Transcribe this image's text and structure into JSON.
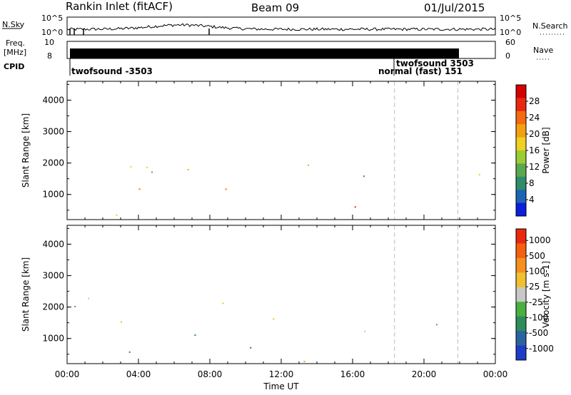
{
  "header": {
    "station": "Rankin Inlet (fitACF)",
    "beam": "Beam 09",
    "date": "01/Jul/2015"
  },
  "strip_labels": {
    "nsky": "N.Sky",
    "nsky_hi": "10^5",
    "nsky_lo": "10^0",
    "nsearch": "N.Search",
    "nsearch_hi": "10^5",
    "nsearch_lo": "10^0",
    "freq_line1": "Freq.",
    "freq_line2": "[MHz]",
    "freq_tick_hi": "10",
    "freq_tick_lo": "8",
    "nave": "Nave",
    "nave_tick_hi": "60",
    "nave_tick_lo": "0",
    "cpid": "CPID"
  },
  "cpid_events": [
    {
      "label": "twofsound -3503",
      "time": 0.1
    },
    {
      "label": "twofsound 3503",
      "time": 18.35
    },
    {
      "label": "normal (fast) 151",
      "time": 18.35
    }
  ],
  "chart_data": [
    {
      "type": "heatmap",
      "name": "power",
      "ylabel": "Slant Range [km]",
      "yticks": [
        1000,
        2000,
        3000,
        4000
      ],
      "ylim": [
        200,
        4600
      ],
      "xlim": [
        0,
        24
      ],
      "colorbar": {
        "label": "Power [dB]",
        "ticks": [
          "4",
          "8",
          "12",
          "16",
          "20",
          "24",
          "28"
        ],
        "colors": [
          "#0a1edc",
          "#1e64b4",
          "#2e8c6a",
          "#5aa850",
          "#9acd32",
          "#f0d020",
          "#f5a010",
          "#f56a10",
          "#e82810",
          "#d40000"
        ]
      }
    },
    {
      "type": "heatmap",
      "name": "velocity",
      "ylabel": "Slant Range [km]",
      "yticks": [
        1000,
        2000,
        3000,
        4000
      ],
      "ylim": [
        200,
        4600
      ],
      "xlim": [
        0,
        24
      ],
      "xlabel": "Time UT",
      "xticks": [
        "00:00",
        "04:00",
        "08:00",
        "12:00",
        "16:00",
        "20:00",
        "00:00"
      ],
      "colorbar": {
        "label": "Velocity [m s-1]",
        "ticks": [
          "1000",
          "500",
          "100",
          "25",
          "-25",
          "-100",
          "-500",
          "-1000"
        ],
        "colors": [
          "#1e3cc8",
          "#2a64a0",
          "#2e8c5a",
          "#4ab040",
          "#c8c8c8",
          "#f0c030",
          "#f59020",
          "#f56010",
          "#e82810"
        ]
      }
    }
  ]
}
